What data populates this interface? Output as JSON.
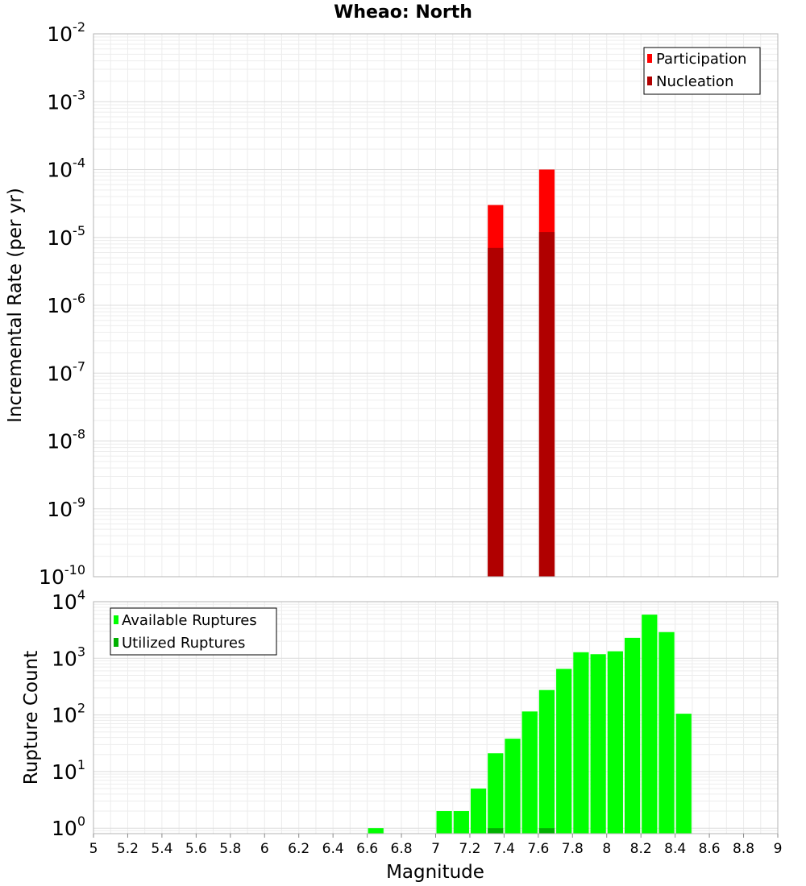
{
  "chart_data": [
    {
      "type": "bar",
      "title": "Wheao: North",
      "xlabel": "",
      "ylabel": "Incremental Rate (per yr)",
      "yscale": "log",
      "ylim": [
        1e-10,
        0.01
      ],
      "xlim": [
        5,
        9
      ],
      "bin_width": 0.1,
      "legend_position": "top-right",
      "y_ticks": [
        {
          "base": "10",
          "exp": "-10"
        },
        {
          "base": "10",
          "exp": "-9"
        },
        {
          "base": "10",
          "exp": "-8"
        },
        {
          "base": "10",
          "exp": "-7"
        },
        {
          "base": "10",
          "exp": "-6"
        },
        {
          "base": "10",
          "exp": "-5"
        },
        {
          "base": "10",
          "exp": "-4"
        },
        {
          "base": "10",
          "exp": "-3"
        },
        {
          "base": "10",
          "exp": "-2"
        }
      ],
      "series": [
        {
          "name": "Participation",
          "color": "#ff0000",
          "x": [
            7.35,
            7.65
          ],
          "values": [
            3e-05,
            0.0001
          ]
        },
        {
          "name": "Nucleation",
          "color": "#b00000",
          "x": [
            7.35,
            7.65
          ],
          "values": [
            7e-06,
            1.2e-05
          ]
        }
      ]
    },
    {
      "type": "bar",
      "title": "",
      "xlabel": "Magnitude",
      "ylabel": "Rupture Count",
      "yscale": "log",
      "ylim": [
        0.8,
        10000
      ],
      "xlim": [
        5,
        9
      ],
      "bin_width": 0.1,
      "legend_position": "top-left",
      "x_ticks": [
        "5",
        "5.2",
        "5.4",
        "5.6",
        "5.8",
        "6",
        "6.2",
        "6.4",
        "6.6",
        "6.8",
        "7",
        "7.2",
        "7.4",
        "7.6",
        "7.8",
        "8",
        "8.2",
        "8.4",
        "8.6",
        "8.8",
        "9"
      ],
      "y_ticks": [
        {
          "base": "10",
          "exp": "0"
        },
        {
          "base": "10",
          "exp": "1"
        },
        {
          "base": "10",
          "exp": "2"
        },
        {
          "base": "10",
          "exp": "3"
        },
        {
          "base": "10",
          "exp": "4"
        }
      ],
      "series": [
        {
          "name": "Available Ruptures",
          "color": "#00ff00",
          "x": [
            6.65,
            7.05,
            7.15,
            7.25,
            7.35,
            7.45,
            7.55,
            7.65,
            7.75,
            7.85,
            7.95,
            8.05,
            8.15,
            8.25,
            8.35,
            8.45
          ],
          "values": [
            1,
            2,
            2,
            5,
            21,
            38,
            115,
            275,
            650,
            1280,
            1180,
            1330,
            2300,
            5900,
            2900,
            105
          ]
        },
        {
          "name": "Utilized Ruptures",
          "color": "#00b000",
          "x": [
            7.35,
            7.65
          ],
          "values": [
            1,
            1
          ]
        }
      ]
    }
  ]
}
